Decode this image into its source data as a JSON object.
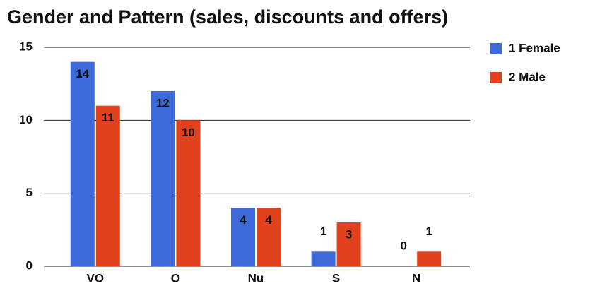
{
  "chart_data": {
    "type": "bar",
    "title": "Gender and Pattern (sales, discounts and offers)",
    "categories": [
      "VO",
      "O",
      "Nu",
      "S",
      "N"
    ],
    "series": [
      {
        "name": "1 Female",
        "color": "#3d69d9",
        "values": [
          14,
          12,
          4,
          1,
          0
        ]
      },
      {
        "name": "2 Male",
        "color": "#e1421d",
        "values": [
          11,
          10,
          4,
          3,
          1
        ]
      }
    ],
    "ylim": [
      0,
      15
    ],
    "yticks": [
      0,
      5,
      10,
      15
    ],
    "grid": true,
    "legend": "right"
  }
}
